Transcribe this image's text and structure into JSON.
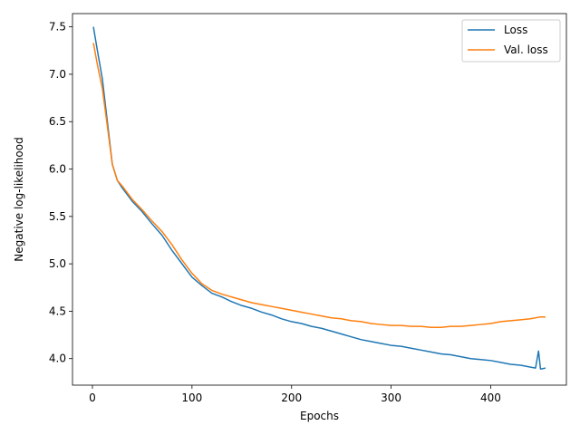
{
  "chart_data": {
    "type": "line",
    "title": "",
    "xlabel": "Epochs",
    "ylabel": "Negative log-likelihood",
    "xlim": [
      -20,
      476
    ],
    "ylim": [
      3.72,
      7.64
    ],
    "xticks": [
      0,
      100,
      200,
      300,
      400
    ],
    "yticks": [
      4.0,
      4.5,
      5.0,
      5.5,
      6.0,
      6.5,
      7.0,
      7.5
    ],
    "xtick_labels": [
      "0",
      "100",
      "200",
      "300",
      "400"
    ],
    "ytick_labels": [
      "4.0",
      "4.5",
      "5.0",
      "5.5",
      "6.0",
      "6.5",
      "7.0",
      "7.5"
    ],
    "grid": false,
    "legend_position": "top-right",
    "series": [
      {
        "name": "Loss",
        "color": "#1f77b4",
        "x": [
          1,
          5,
          10,
          15,
          20,
          25,
          30,
          40,
          50,
          60,
          70,
          80,
          90,
          100,
          110,
          120,
          130,
          140,
          150,
          160,
          170,
          180,
          190,
          200,
          210,
          220,
          230,
          240,
          250,
          260,
          270,
          280,
          290,
          300,
          310,
          320,
          330,
          340,
          350,
          360,
          370,
          380,
          390,
          400,
          410,
          420,
          430,
          440,
          445,
          448,
          450,
          455
        ],
        "y": [
          7.5,
          7.25,
          6.95,
          6.5,
          6.05,
          5.88,
          5.8,
          5.66,
          5.55,
          5.42,
          5.3,
          5.14,
          5.0,
          4.86,
          4.77,
          4.69,
          4.65,
          4.6,
          4.56,
          4.53,
          4.49,
          4.46,
          4.42,
          4.39,
          4.37,
          4.34,
          4.32,
          4.29,
          4.26,
          4.23,
          4.2,
          4.18,
          4.16,
          4.14,
          4.13,
          4.11,
          4.09,
          4.07,
          4.05,
          4.04,
          4.02,
          4.0,
          3.99,
          3.98,
          3.96,
          3.94,
          3.93,
          3.91,
          3.9,
          4.08,
          3.89,
          3.9
        ]
      },
      {
        "name": "Val. loss",
        "color": "#ff7f0e",
        "x": [
          1,
          5,
          10,
          15,
          20,
          25,
          30,
          40,
          50,
          60,
          70,
          80,
          90,
          100,
          110,
          120,
          130,
          140,
          150,
          160,
          170,
          180,
          190,
          200,
          210,
          220,
          230,
          240,
          250,
          260,
          270,
          280,
          290,
          300,
          310,
          320,
          330,
          340,
          350,
          360,
          370,
          380,
          390,
          400,
          410,
          420,
          430,
          440,
          450,
          455
        ],
        "y": [
          7.33,
          7.1,
          6.85,
          6.45,
          6.05,
          5.88,
          5.82,
          5.68,
          5.57,
          5.45,
          5.34,
          5.2,
          5.04,
          4.9,
          4.79,
          4.72,
          4.68,
          4.65,
          4.62,
          4.59,
          4.57,
          4.55,
          4.53,
          4.51,
          4.49,
          4.47,
          4.45,
          4.43,
          4.42,
          4.4,
          4.39,
          4.37,
          4.36,
          4.35,
          4.35,
          4.34,
          4.34,
          4.33,
          4.33,
          4.34,
          4.34,
          4.35,
          4.36,
          4.37,
          4.39,
          4.4,
          4.41,
          4.42,
          4.44,
          4.44
        ]
      }
    ]
  }
}
